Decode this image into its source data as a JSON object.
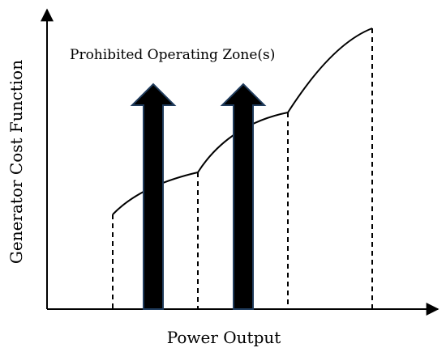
{
  "diagram": {
    "annotation": "Prohibited Operating Zone(s)",
    "xlabel": "Power Output",
    "ylabel": "Generator Cost Function",
    "colors": {
      "line": "#000000",
      "arrow_fill": "#000000",
      "arrow_outline": "#1f3b5c",
      "background": "#ffffff"
    }
  }
}
